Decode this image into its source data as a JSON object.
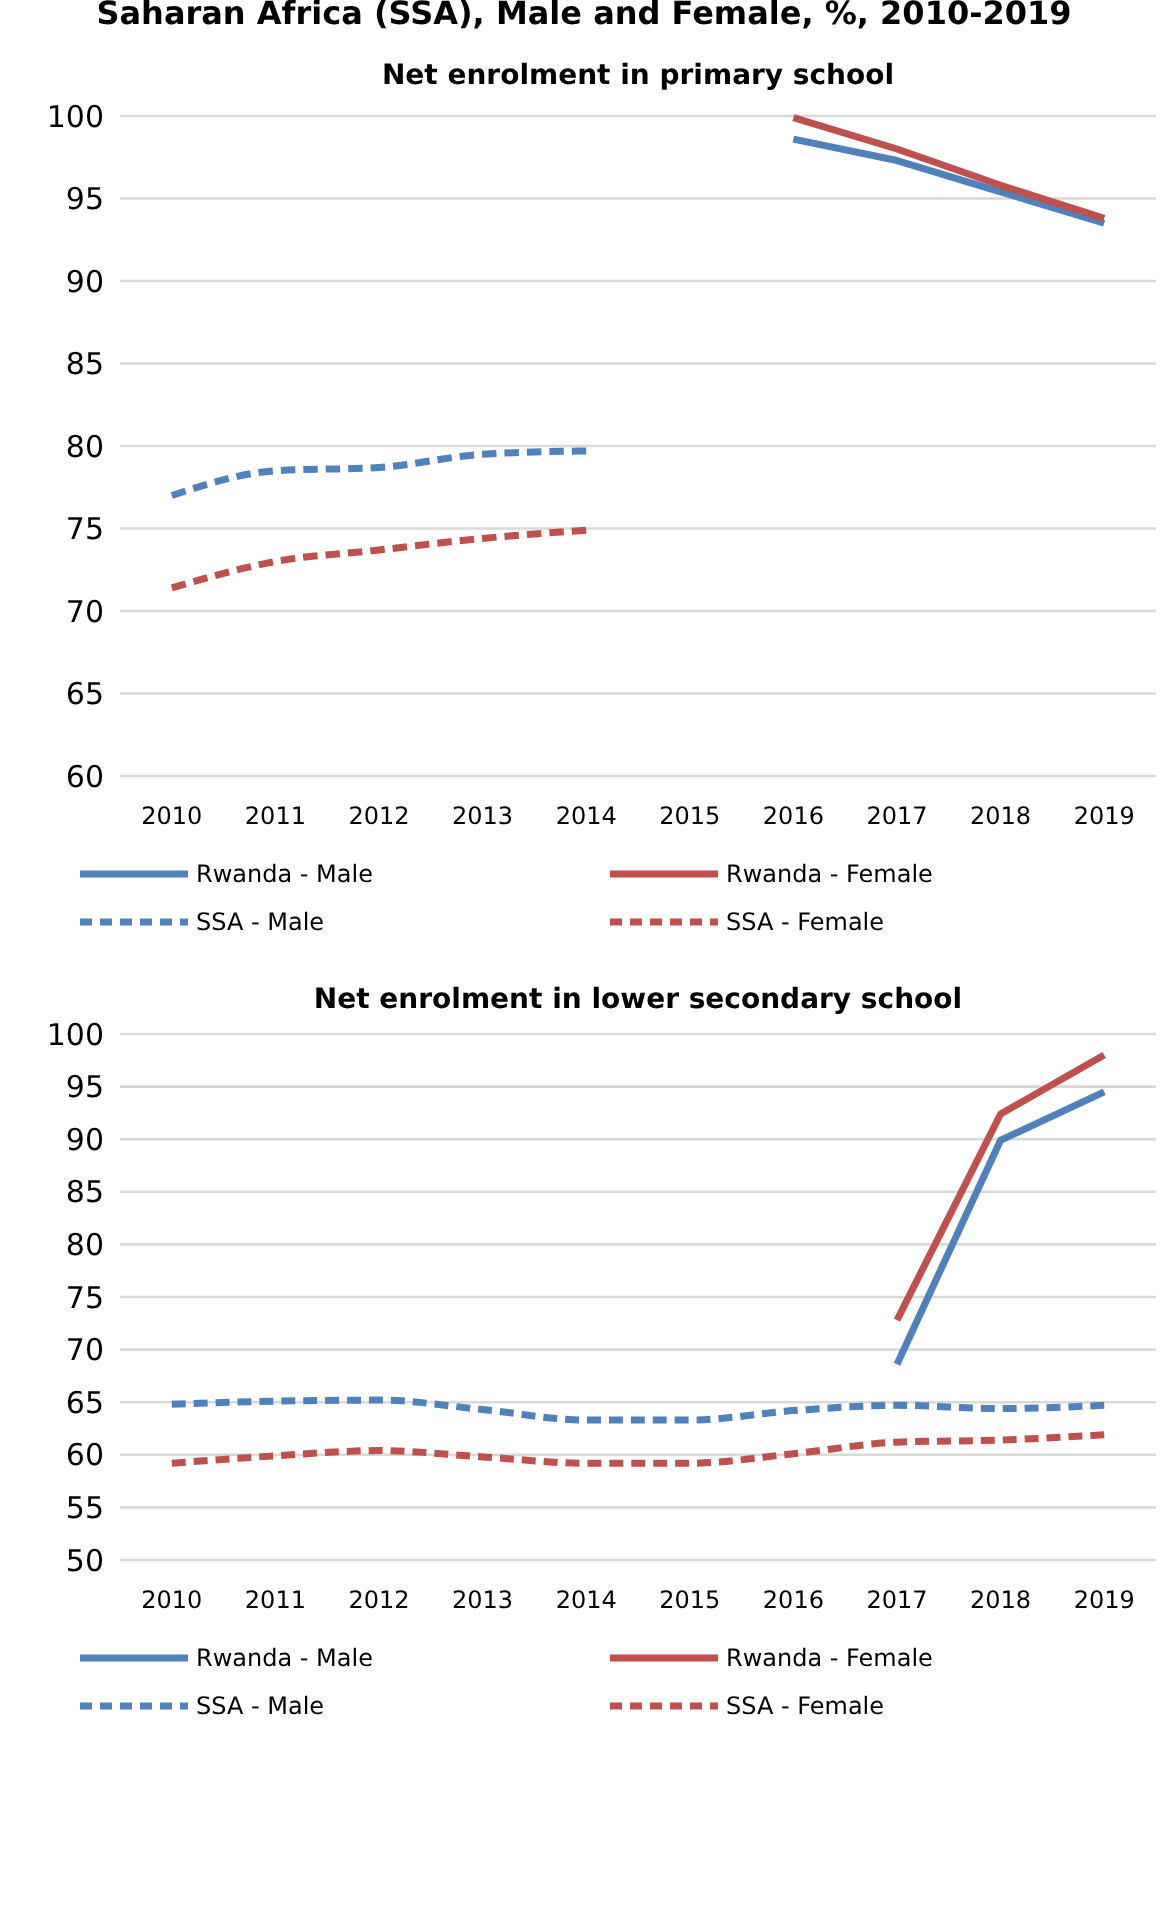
{
  "chart_data": [
    {
      "type": "line",
      "title": "Net enrolment in primary school",
      "annotations": [
        "Saharan Africa (SSA), Male and Female, %, 2010-2019"
      ],
      "categories": [
        "2010",
        "2011",
        "2012",
        "2013",
        "2014",
        "2015",
        "2016",
        "2017",
        "2018",
        "2019"
      ],
      "ylim": [
        60,
        100
      ],
      "yticks": [
        60,
        65,
        70,
        75,
        80,
        85,
        90,
        95,
        100
      ],
      "grid": "y",
      "legend": "bottom",
      "series": [
        {
          "name": "Rwanda - Male",
          "color": "#4f81bd",
          "line_style": "solid",
          "values": [
            null,
            null,
            null,
            null,
            null,
            null,
            98.6,
            97.3,
            95.4,
            93.5
          ]
        },
        {
          "name": "Rwanda - Female",
          "color": "#c0504d",
          "line_style": "solid",
          "values": [
            null,
            null,
            null,
            null,
            null,
            null,
            99.9,
            98.0,
            95.8,
            93.8
          ]
        },
        {
          "name": "SSA - Male",
          "color": "#4f81bd",
          "line_style": "dashed",
          "values": [
            77.0,
            78.5,
            78.7,
            79.5,
            79.7,
            null,
            null,
            null,
            null,
            null
          ]
        },
        {
          "name": "SSA - Female",
          "color": "#c0504d",
          "line_style": "dashed",
          "values": [
            71.4,
            73.0,
            73.7,
            74.4,
            74.9,
            null,
            null,
            null,
            null,
            null
          ]
        }
      ]
    },
    {
      "type": "line",
      "title": "Net enrolment in lower secondary school",
      "categories": [
        "2010",
        "2011",
        "2012",
        "2013",
        "2014",
        "2015",
        "2016",
        "2017",
        "2018",
        "2019"
      ],
      "ylim": [
        50,
        100
      ],
      "yticks": [
        50,
        55,
        60,
        65,
        70,
        75,
        80,
        85,
        90,
        95,
        100
      ],
      "grid": "y",
      "legend": "bottom",
      "series": [
        {
          "name": "Rwanda - Male",
          "color": "#4f81bd",
          "line_style": "solid",
          "values": [
            null,
            null,
            null,
            null,
            null,
            null,
            null,
            68.6,
            89.9,
            94.5
          ]
        },
        {
          "name": "Rwanda - Female",
          "color": "#c0504d",
          "line_style": "solid",
          "values": [
            null,
            null,
            null,
            null,
            null,
            null,
            null,
            72.8,
            92.4,
            98.0
          ]
        },
        {
          "name": "SSA - Male",
          "color": "#4f81bd",
          "line_style": "dashed",
          "values": [
            64.8,
            65.1,
            65.2,
            64.3,
            63.3,
            63.3,
            64.2,
            64.7,
            64.4,
            64.7
          ]
        },
        {
          "name": "SSA - Female",
          "color": "#c0504d",
          "line_style": "dashed",
          "values": [
            59.2,
            59.9,
            60.4,
            59.8,
            59.2,
            59.2,
            60.1,
            61.2,
            61.4,
            61.9
          ]
        }
      ]
    }
  ]
}
